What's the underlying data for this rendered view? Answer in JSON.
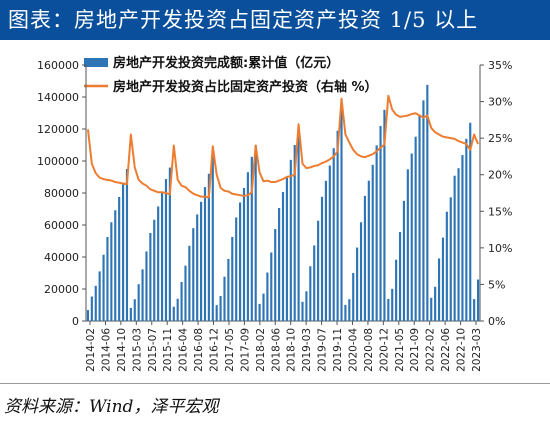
{
  "title": "图表：房地产开发投资占固定资产投资 1/5 以上",
  "source": "资料来源：Wind，泽平宏观",
  "colors": {
    "title_bg": "#0a4f9b",
    "bars": "#2e75b6",
    "line": "#ed7d31"
  },
  "chart_data": {
    "type": "bar+line",
    "left_axis": {
      "min": 0,
      "max": 160000,
      "ticks": [
        "0",
        "20000",
        "40000",
        "60000",
        "80000",
        "100000",
        "120000",
        "140000",
        "160000"
      ]
    },
    "right_axis": {
      "min": 0,
      "max": 35,
      "ticks": [
        "0%",
        "5%",
        "10%",
        "15%",
        "20%",
        "25%",
        "30%",
        "35%"
      ]
    },
    "x_tick_labels": [
      "2014-02",
      "2014-06",
      "2014-10",
      "2015-03",
      "2015-07",
      "2015-11",
      "2016-04",
      "2016-08",
      "2016-12",
      "2017-05",
      "2017-09",
      "2018-02",
      "2018-06",
      "2018-10",
      "2019-03",
      "2019-07",
      "2019-11",
      "2020-04",
      "2020-08",
      "2020-12",
      "2021-05",
      "2021-09",
      "2022-02",
      "2022-06",
      "2022-10",
      "2023-03"
    ],
    "legend_position": "top",
    "series": [
      {
        "name": "房地产开发投资完成额:累计值（亿元）",
        "type": "bar",
        "axis": "left",
        "values": [
          [
            6800,
            15300,
            22000,
            31000,
            41400,
            52500,
            61700,
            69200,
            77500,
            85400,
            95000
          ],
          [
            8200,
            13600,
            23000,
            32300,
            43500,
            55000,
            63300,
            71600,
            80500,
            88700,
            95900
          ],
          [
            8900,
            13900,
            24400,
            34600,
            47000,
            58000,
            66600,
            74500,
            83700,
            92000,
            102600
          ],
          [
            9900,
            15600,
            27700,
            38800,
            52500,
            64700,
            74100,
            83100,
            93000,
            102600,
            109800
          ],
          [
            10700,
            17100,
            30300,
            42800,
            57500,
            70600,
            80600,
            90300,
            100700,
            110000,
            120300
          ],
          [
            12000,
            18600,
            34200,
            47200,
            62700,
            77600,
            87600,
            97200,
            108000,
            118900,
            132200
          ],
          [
            10100,
            13600,
            30000,
            45900,
            61700,
            78200,
            87700,
            97600,
            109800,
            121900,
            132000
          ],
          [
            13800,
            20100,
            38300,
            55600,
            75100,
            94800,
            104700,
            115200,
            128900,
            137900,
            147600
          ],
          [
            14500,
            21400,
            39100,
            52100,
            68300,
            77300,
            90800,
            95500,
            103700,
            113900,
            123900
          ],
          [
            13700,
            25900
          ]
        ]
      },
      {
        "name": "房地产开发投资占比固定资产投资（右轴 %）",
        "type": "line",
        "axis": "right",
        "values": [
          [
            26.2,
            21.5,
            20.2,
            19.6,
            19.4,
            19.3,
            19.2,
            19.0,
            18.9,
            18.8,
            18.7
          ],
          [
            25.5,
            21.0,
            19.3,
            18.8,
            18.5,
            18.0,
            17.8,
            17.6,
            17.6,
            17.5,
            17.3
          ],
          [
            24.0,
            19.3,
            18.5,
            18.3,
            17.8,
            17.4,
            17.2,
            17.0,
            17.0,
            16.9,
            23.9
          ],
          [
            20.0,
            18.2,
            17.8,
            17.7,
            17.4,
            17.3,
            17.2,
            17.1,
            17.2,
            17.6,
            24.0
          ],
          [
            20.3,
            19.1,
            19.2,
            19.0,
            19.0,
            19.2,
            19.4,
            19.7,
            19.8,
            20.0,
            26.9
          ],
          [
            21.5,
            20.9,
            21.0,
            21.2,
            21.3,
            21.6,
            21.8,
            22.1,
            22.5,
            23.2,
            30.4
          ],
          [
            25.5,
            24.4,
            23.4,
            22.8,
            22.5,
            22.4,
            22.6,
            22.8,
            23.2,
            23.7,
            24.1
          ],
          [
            30.8,
            28.9,
            28.2,
            27.9,
            28.0,
            28.1,
            28.3,
            28.4,
            28.1,
            27.8,
            28.1
          ],
          [
            26.4,
            25.8,
            25.5,
            25.2,
            25.1,
            25.0,
            24.9,
            24.6,
            24.4,
            24.2,
            23.4
          ],
          [
            25.5,
            24.2
          ]
        ]
      }
    ]
  }
}
